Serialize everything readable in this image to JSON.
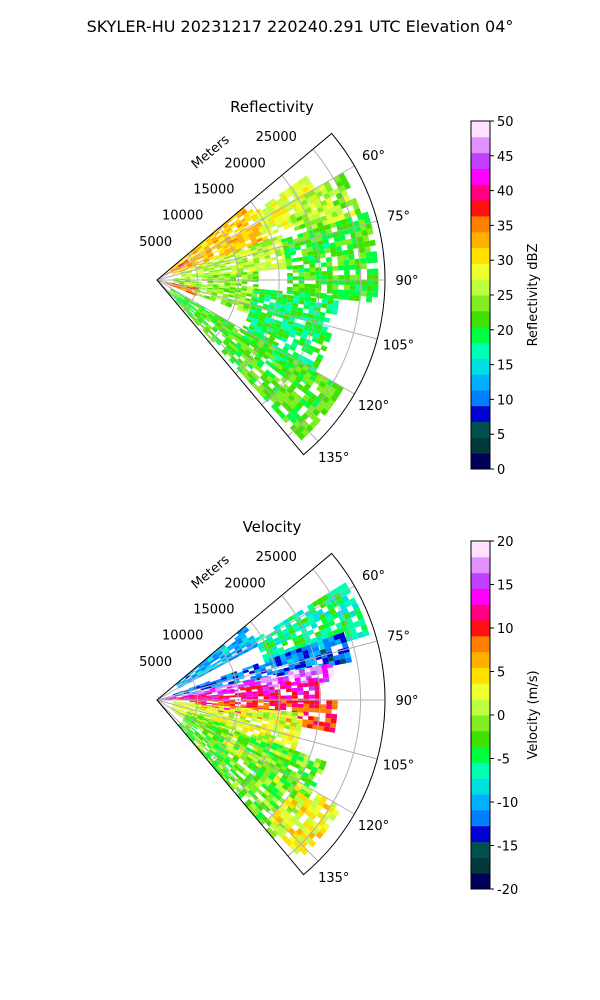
{
  "figure": {
    "title": "SKYLER-HU  20231217  220240.291 UTC Elevation 04°"
  },
  "chart_data": [
    {
      "type": "heatmap",
      "projection": "polar-sector",
      "title": "Reflectivity",
      "radial_label": "Meters",
      "radial_ticks": [
        5000,
        10000,
        15000,
        20000,
        25000
      ],
      "radial_tick_labels": [
        "5000",
        "10000",
        "15000",
        "20000",
        "25000"
      ],
      "max_range_m": 28000,
      "azimuth_range_deg": [
        50,
        140
      ],
      "azimuth_ticks_deg": [
        60,
        75,
        90,
        105,
        120,
        135
      ],
      "azimuth_tick_labels": [
        "60°",
        "75°",
        "90°",
        "105°",
        "120°",
        "135°"
      ],
      "grid": true,
      "colorbar": {
        "label": "Reflectivity dBZ",
        "min": 0,
        "max": 50,
        "ticks": [
          0,
          5,
          10,
          15,
          20,
          25,
          30,
          35,
          40,
          45,
          50
        ],
        "tick_labels": [
          "0",
          "5",
          "10",
          "15",
          "20",
          "25",
          "30",
          "35",
          "40",
          "45",
          "50"
        ],
        "colors": [
          "#00005a",
          "#003a3a",
          "#005050",
          "#0000d0",
          "#0080ff",
          "#00b0ff",
          "#00e0e0",
          "#00ffb0",
          "#00ff40",
          "#40e000",
          "#80ee20",
          "#c0ff40",
          "#eeff30",
          "#ffe000",
          "#ffb000",
          "#ff8000",
          "#ff1010",
          "#ff0080",
          "#ff00ff",
          "#c040ff",
          "#e090ff",
          "#ffe0ff"
        ]
      },
      "value_regions": [
        {
          "az": [
            50,
            70
          ],
          "r": [
            2000,
            14000
          ],
          "value": 32
        },
        {
          "az": [
            55,
            68
          ],
          "r": [
            14000,
            22000
          ],
          "value": 28
        },
        {
          "az": [
            60,
            72
          ],
          "r": [
            18000,
            26000
          ],
          "value": 25
        },
        {
          "az": [
            70,
            85
          ],
          "r": [
            3000,
            16000
          ],
          "value": 26
        },
        {
          "az": [
            72,
            95
          ],
          "r": [
            16000,
            27000
          ],
          "value": 21
        },
        {
          "az": [
            85,
            110
          ],
          "r": [
            2000,
            12000
          ],
          "value": 24
        },
        {
          "az": [
            95,
            125
          ],
          "r": [
            12000,
            22000
          ],
          "value": 19
        },
        {
          "az": [
            120,
            138
          ],
          "r": [
            2000,
            26000
          ],
          "value": 22
        },
        {
          "az": [
            56,
            62
          ],
          "r": [
            300,
            4000
          ],
          "value": 36
        },
        {
          "az": [
            100,
            112
          ],
          "r": [
            1000,
            5000
          ],
          "value": 36
        }
      ]
    },
    {
      "type": "heatmap",
      "projection": "polar-sector",
      "title": "Velocity",
      "radial_label": "Meters",
      "radial_ticks": [
        5000,
        10000,
        15000,
        20000,
        25000
      ],
      "radial_tick_labels": [
        "5000",
        "10000",
        "15000",
        "20000",
        "25000"
      ],
      "max_range_m": 28000,
      "azimuth_range_deg": [
        50,
        140
      ],
      "azimuth_ticks_deg": [
        60,
        75,
        90,
        105,
        120,
        135
      ],
      "azimuth_tick_labels": [
        "60°",
        "75°",
        "90°",
        "105°",
        "120°",
        "135°"
      ],
      "grid": true,
      "colorbar": {
        "label": "Velocity (m/s)",
        "min": -20,
        "max": 20,
        "ticks": [
          -20,
          -15,
          -10,
          -5,
          0,
          5,
          10,
          15,
          20
        ],
        "tick_labels": [
          "-20",
          "-15",
          "-10",
          "-5",
          "0",
          "5",
          "10",
          "15",
          "20"
        ],
        "colors": [
          "#00005a",
          "#003a3a",
          "#005050",
          "#0000d0",
          "#0080ff",
          "#00b0ff",
          "#00e0e0",
          "#00ffb0",
          "#00ff40",
          "#40e000",
          "#80ee20",
          "#c0ff40",
          "#eeff30",
          "#ffe000",
          "#ffb000",
          "#ff8000",
          "#ff1010",
          "#ff0080",
          "#ff00ff",
          "#c040ff",
          "#e090ff",
          "#ffe0ff"
        ]
      },
      "value_regions": [
        {
          "az": [
            50,
            62
          ],
          "r": [
            3000,
            14000
          ],
          "value": -10
        },
        {
          "az": [
            58,
            72
          ],
          "r": [
            14000,
            27000
          ],
          "value": -6
        },
        {
          "az": [
            70,
            78
          ],
          "r": [
            2000,
            24000
          ],
          "value": -12
        },
        {
          "az": [
            78,
            84
          ],
          "r": [
            1000,
            22000
          ],
          "value": 16
        },
        {
          "az": [
            82,
            90
          ],
          "r": [
            500,
            20000
          ],
          "value": 12
        },
        {
          "az": [
            90,
            100
          ],
          "r": [
            4000,
            22000
          ],
          "value": 10
        },
        {
          "az": [
            95,
            125
          ],
          "r": [
            2000,
            18000
          ],
          "value": 2
        },
        {
          "az": [
            110,
            140
          ],
          "r": [
            4000,
            22000
          ],
          "value": -2
        },
        {
          "az": [
            120,
            138
          ],
          "r": [
            20000,
            26000
          ],
          "value": 3
        }
      ]
    }
  ]
}
